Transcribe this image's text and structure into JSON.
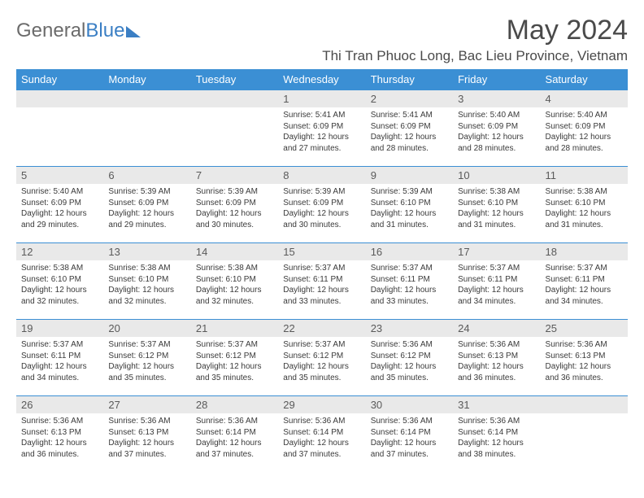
{
  "brand": {
    "part1": "General",
    "part2": "Blue"
  },
  "title": "May 2024",
  "location": "Thi Tran Phuoc Long, Bac Lieu Province, Vietnam",
  "colors": {
    "header_bg": "#3b8fd4",
    "header_text": "#ffffff",
    "daynum_bg": "#e9e9e9",
    "border": "#3b8fd4",
    "text": "#3a3a3a",
    "logo_gray": "#6b6b6b",
    "logo_blue": "#3b7fc4",
    "background": "#ffffff"
  },
  "weekdays": [
    "Sunday",
    "Monday",
    "Tuesday",
    "Wednesday",
    "Thursday",
    "Friday",
    "Saturday"
  ],
  "weeks": [
    [
      null,
      null,
      null,
      {
        "n": "1",
        "sr": "5:41 AM",
        "ss": "6:09 PM",
        "dl": "12 hours and 27 minutes."
      },
      {
        "n": "2",
        "sr": "5:41 AM",
        "ss": "6:09 PM",
        "dl": "12 hours and 28 minutes."
      },
      {
        "n": "3",
        "sr": "5:40 AM",
        "ss": "6:09 PM",
        "dl": "12 hours and 28 minutes."
      },
      {
        "n": "4",
        "sr": "5:40 AM",
        "ss": "6:09 PM",
        "dl": "12 hours and 28 minutes."
      }
    ],
    [
      {
        "n": "5",
        "sr": "5:40 AM",
        "ss": "6:09 PM",
        "dl": "12 hours and 29 minutes."
      },
      {
        "n": "6",
        "sr": "5:39 AM",
        "ss": "6:09 PM",
        "dl": "12 hours and 29 minutes."
      },
      {
        "n": "7",
        "sr": "5:39 AM",
        "ss": "6:09 PM",
        "dl": "12 hours and 30 minutes."
      },
      {
        "n": "8",
        "sr": "5:39 AM",
        "ss": "6:09 PM",
        "dl": "12 hours and 30 minutes."
      },
      {
        "n": "9",
        "sr": "5:39 AM",
        "ss": "6:10 PM",
        "dl": "12 hours and 31 minutes."
      },
      {
        "n": "10",
        "sr": "5:38 AM",
        "ss": "6:10 PM",
        "dl": "12 hours and 31 minutes."
      },
      {
        "n": "11",
        "sr": "5:38 AM",
        "ss": "6:10 PM",
        "dl": "12 hours and 31 minutes."
      }
    ],
    [
      {
        "n": "12",
        "sr": "5:38 AM",
        "ss": "6:10 PM",
        "dl": "12 hours and 32 minutes."
      },
      {
        "n": "13",
        "sr": "5:38 AM",
        "ss": "6:10 PM",
        "dl": "12 hours and 32 minutes."
      },
      {
        "n": "14",
        "sr": "5:38 AM",
        "ss": "6:10 PM",
        "dl": "12 hours and 32 minutes."
      },
      {
        "n": "15",
        "sr": "5:37 AM",
        "ss": "6:11 PM",
        "dl": "12 hours and 33 minutes."
      },
      {
        "n": "16",
        "sr": "5:37 AM",
        "ss": "6:11 PM",
        "dl": "12 hours and 33 minutes."
      },
      {
        "n": "17",
        "sr": "5:37 AM",
        "ss": "6:11 PM",
        "dl": "12 hours and 34 minutes."
      },
      {
        "n": "18",
        "sr": "5:37 AM",
        "ss": "6:11 PM",
        "dl": "12 hours and 34 minutes."
      }
    ],
    [
      {
        "n": "19",
        "sr": "5:37 AM",
        "ss": "6:11 PM",
        "dl": "12 hours and 34 minutes."
      },
      {
        "n": "20",
        "sr": "5:37 AM",
        "ss": "6:12 PM",
        "dl": "12 hours and 35 minutes."
      },
      {
        "n": "21",
        "sr": "5:37 AM",
        "ss": "6:12 PM",
        "dl": "12 hours and 35 minutes."
      },
      {
        "n": "22",
        "sr": "5:37 AM",
        "ss": "6:12 PM",
        "dl": "12 hours and 35 minutes."
      },
      {
        "n": "23",
        "sr": "5:36 AM",
        "ss": "6:12 PM",
        "dl": "12 hours and 35 minutes."
      },
      {
        "n": "24",
        "sr": "5:36 AM",
        "ss": "6:13 PM",
        "dl": "12 hours and 36 minutes."
      },
      {
        "n": "25",
        "sr": "5:36 AM",
        "ss": "6:13 PM",
        "dl": "12 hours and 36 minutes."
      }
    ],
    [
      {
        "n": "26",
        "sr": "5:36 AM",
        "ss": "6:13 PM",
        "dl": "12 hours and 36 minutes."
      },
      {
        "n": "27",
        "sr": "5:36 AM",
        "ss": "6:13 PM",
        "dl": "12 hours and 37 minutes."
      },
      {
        "n": "28",
        "sr": "5:36 AM",
        "ss": "6:14 PM",
        "dl": "12 hours and 37 minutes."
      },
      {
        "n": "29",
        "sr": "5:36 AM",
        "ss": "6:14 PM",
        "dl": "12 hours and 37 minutes."
      },
      {
        "n": "30",
        "sr": "5:36 AM",
        "ss": "6:14 PM",
        "dl": "12 hours and 37 minutes."
      },
      {
        "n": "31",
        "sr": "5:36 AM",
        "ss": "6:14 PM",
        "dl": "12 hours and 38 minutes."
      },
      null
    ]
  ],
  "labels": {
    "sunrise": "Sunrise:",
    "sunset": "Sunset:",
    "daylight": "Daylight:"
  }
}
